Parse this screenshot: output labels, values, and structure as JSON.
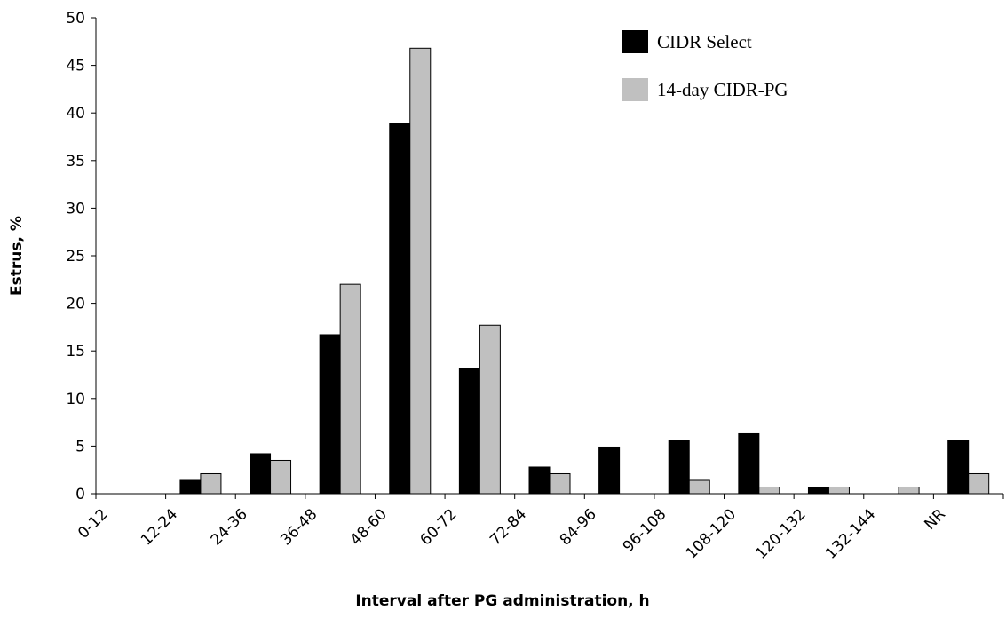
{
  "chart_data": {
    "type": "bar",
    "x_label": "Interval after PG administration, h",
    "y_label": "Estrus, %",
    "categories": [
      "0-12",
      "12-24",
      "24-36",
      "36-48",
      "48-60",
      "60-72",
      "72-84",
      "84-96",
      "96-108",
      "108-120",
      "120-132",
      "132-144",
      "NR"
    ],
    "series": [
      {
        "name": "CIDR Select",
        "color": "#000000",
        "values": [
          0,
          1.4,
          4.2,
          16.7,
          38.9,
          13.2,
          2.8,
          4.9,
          5.6,
          6.3,
          0.7,
          0,
          5.6
        ]
      },
      {
        "name": "14-day CIDR-PG",
        "color": "#c0c0c0",
        "values": [
          0,
          2.1,
          3.5,
          22.0,
          46.8,
          17.7,
          2.1,
          0,
          1.4,
          0.7,
          0.7,
          0.7,
          2.1
        ]
      }
    ],
    "ylim": [
      0,
      50
    ],
    "yticks": [
      0,
      5,
      10,
      15,
      20,
      25,
      30,
      35,
      40,
      45,
      50
    ],
    "grid": false,
    "legend": "top-right"
  }
}
